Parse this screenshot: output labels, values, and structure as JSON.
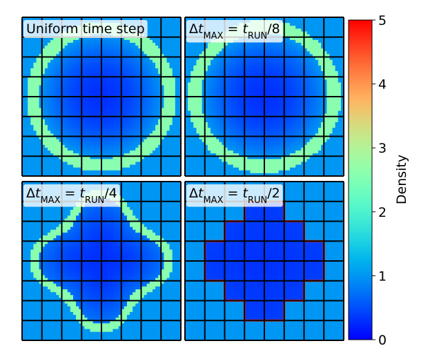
{
  "chart_data": {
    "type": "heatmap",
    "grid_cells": 8,
    "panels": [
      {
        "name": "uniform",
        "label_html": "Uniform time step",
        "pattern": "ring",
        "ring_radius": 0.47,
        "ring_width": 0.08
      },
      {
        "name": "dt-8",
        "label_html": "Δ<tspan font-style='italic'>t</tspan><tspan baseline-shift='sub' font-size='13'>MAX</tspan> = <tspan font-style='italic'>t</tspan><tspan baseline-shift='sub' font-size='13'>RUN</tspan>/8",
        "pattern": "ring",
        "ring_radius": 0.48,
        "ring_width": 0.08
      },
      {
        "name": "dt-4",
        "label_html": "Δ<tspan font-style='italic'>t</tspan><tspan baseline-shift='sub' font-size='13'>MAX</tspan> = <tspan font-style='italic'>t</tspan><tspan baseline-shift='sub' font-size='13'>RUN</tspan>/4",
        "pattern": "blob"
      },
      {
        "name": "dt-2",
        "label_html": "Δ<tspan font-style='italic'>t</tspan><tspan baseline-shift='sub' font-size='13'>MAX</tspan> = <tspan font-style='italic'>t</tspan><tspan baseline-shift='sub' font-size='13'>RUN</tspan>/2",
        "pattern": "cross"
      }
    ],
    "colorbar": {
      "label": "Density",
      "min": 0,
      "max": 5,
      "ticks": [
        "0",
        "1",
        "2",
        "3",
        "4",
        "5"
      ],
      "colormap": "rainbow"
    },
    "background_density": 1.0,
    "interior_density": 0.3,
    "ring_density": 2.6
  }
}
